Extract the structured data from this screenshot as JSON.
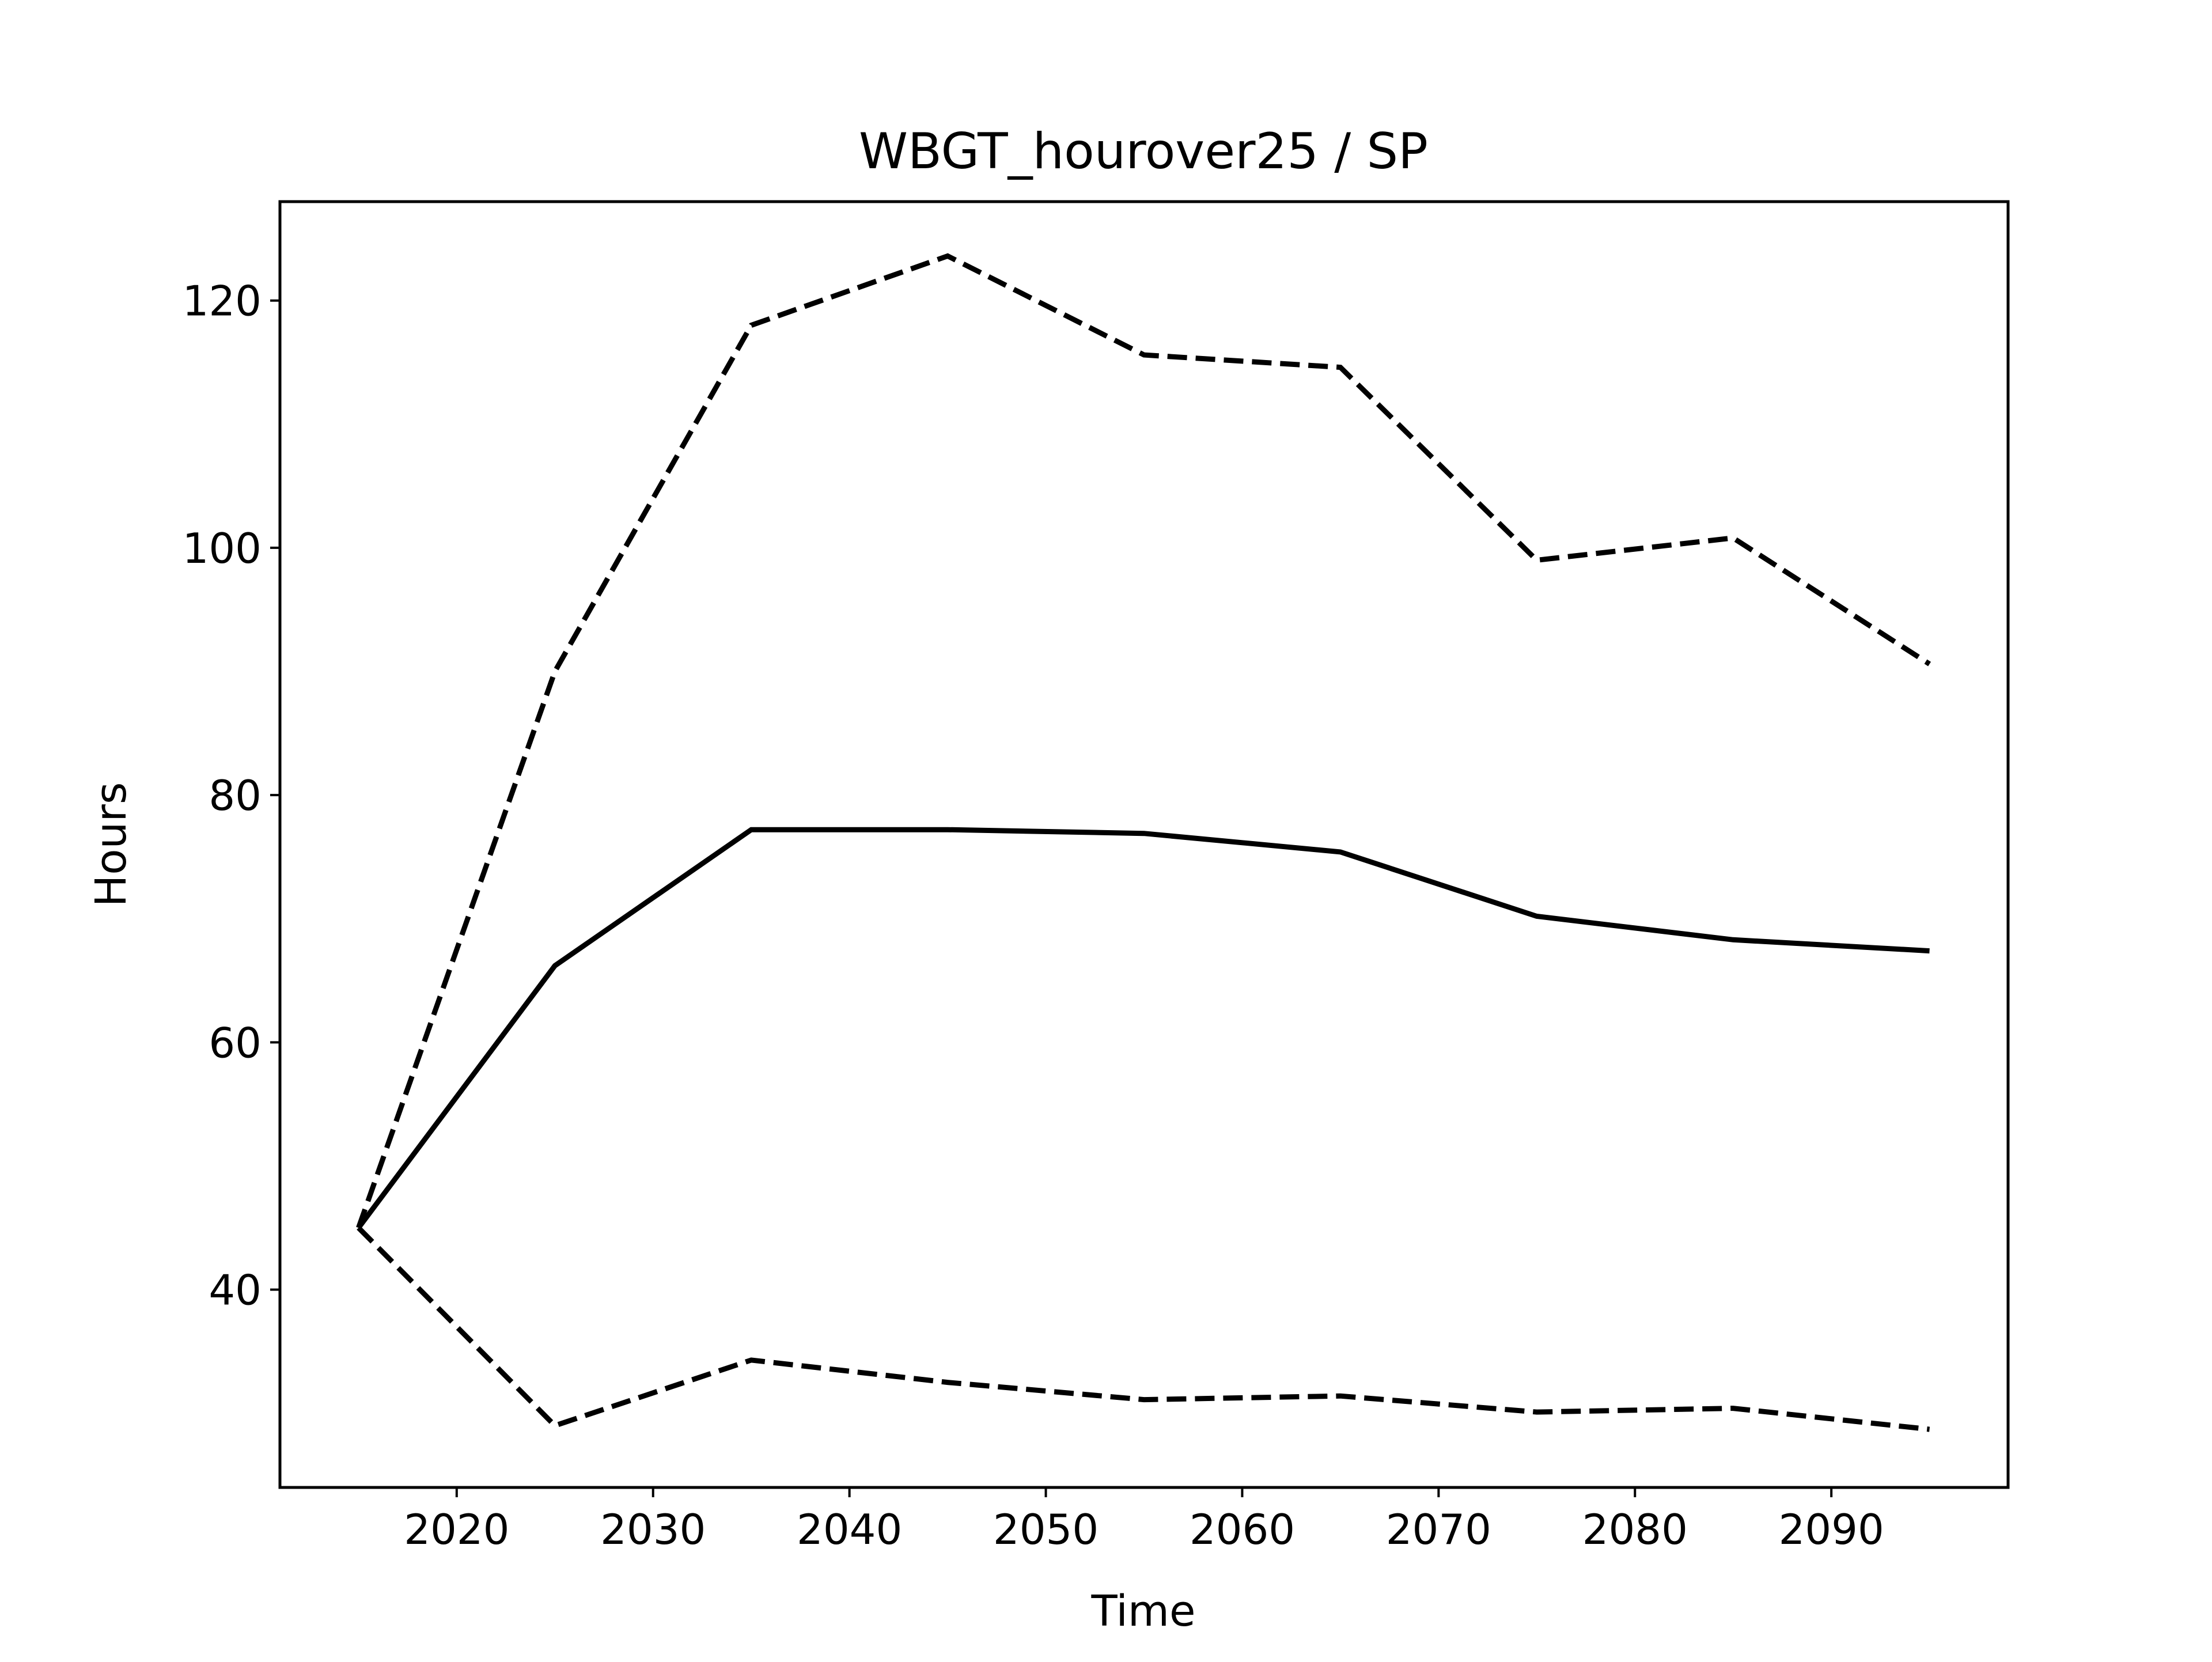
{
  "chart_data": {
    "type": "line",
    "title": "WBGT_hourover25 / SP",
    "xlabel": "Time",
    "ylabel": "Hours",
    "xlim": [
      2011,
      2099
    ],
    "ylim": [
      24,
      128
    ],
    "xticks": [
      2020,
      2030,
      2040,
      2050,
      2060,
      2070,
      2080,
      2090
    ],
    "yticks": [
      40,
      60,
      80,
      100,
      120
    ],
    "grid": false,
    "legend": "none",
    "x": [
      2015,
      2025,
      2035,
      2045,
      2055,
      2065,
      2075,
      2085,
      2095
    ],
    "series": [
      {
        "style": "solid",
        "color": "#000000",
        "values": [
          45.0,
          66.2,
          77.2,
          77.2,
          76.9,
          75.4,
          70.2,
          68.3,
          67.4
        ]
      },
      {
        "style": "dashed",
        "color": "#000000",
        "values": [
          45.0,
          90.0,
          118.0,
          123.6,
          115.6,
          114.6,
          99.0,
          100.8,
          90.6
        ]
      },
      {
        "style": "dashed",
        "color": "#000000",
        "values": [
          45.0,
          29.0,
          34.3,
          32.5,
          31.1,
          31.4,
          30.1,
          30.4,
          28.7
        ]
      }
    ]
  }
}
